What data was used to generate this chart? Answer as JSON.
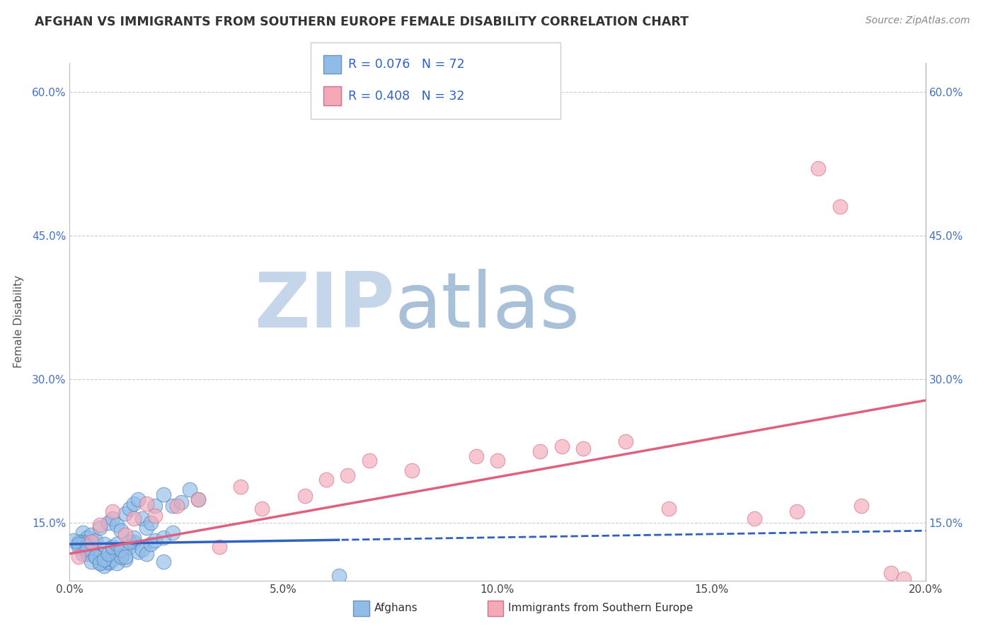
{
  "title": "AFGHAN VS IMMIGRANTS FROM SOUTHERN EUROPE FEMALE DISABILITY CORRELATION CHART",
  "source": "Source: ZipAtlas.com",
  "ylabel": "Female Disability",
  "legend_label1": "Afghans",
  "legend_label2": "Immigrants from Southern Europe",
  "R1": 0.076,
  "N1": 72,
  "R2": 0.408,
  "N2": 32,
  "color1": "#90bce8",
  "color2": "#f4a8b8",
  "trendline1_color": "#3060c0",
  "trendline2_color": "#e06080",
  "xlim": [
    0.0,
    0.2
  ],
  "ylim": [
    0.09,
    0.63
  ],
  "xticks": [
    0.0,
    0.05,
    0.1,
    0.15,
    0.2
  ],
  "yticks": [
    0.15,
    0.3,
    0.45,
    0.6
  ],
  "ytick_labels": [
    "15.0%",
    "30.0%",
    "45.0%",
    "60.0%"
  ],
  "xtick_labels": [
    "0.0%",
    "5.0%",
    "10.0%",
    "15.0%",
    "20.0%"
  ],
  "watermark_zip": "ZIP",
  "watermark_atlas": "atlas",
  "watermark_color_zip": "#c8d8ee",
  "watermark_color_atlas": "#a8c4e0",
  "blue_scatter_x": [
    0.003,
    0.004,
    0.005,
    0.006,
    0.007,
    0.008,
    0.009,
    0.01,
    0.011,
    0.012,
    0.013,
    0.014,
    0.015,
    0.016,
    0.017,
    0.018,
    0.019,
    0.02,
    0.022,
    0.024,
    0.026,
    0.028,
    0.03,
    0.002,
    0.003,
    0.004,
    0.005,
    0.006,
    0.007,
    0.008,
    0.009,
    0.01,
    0.011,
    0.012,
    0.013,
    0.014,
    0.015,
    0.016,
    0.017,
    0.018,
    0.019,
    0.02,
    0.022,
    0.024,
    0.002,
    0.003,
    0.004,
    0.005,
    0.006,
    0.007,
    0.008,
    0.009,
    0.01,
    0.011,
    0.012,
    0.063,
    0.001,
    0.002,
    0.003,
    0.004,
    0.005,
    0.006,
    0.007,
    0.008,
    0.009,
    0.01,
    0.011,
    0.012,
    0.013,
    0.014,
    0.015,
    0.022
  ],
  "blue_scatter_y": [
    0.14,
    0.135,
    0.138,
    0.132,
    0.145,
    0.128,
    0.15,
    0.155,
    0.148,
    0.142,
    0.16,
    0.165,
    0.17,
    0.175,
    0.155,
    0.145,
    0.15,
    0.168,
    0.18,
    0.168,
    0.172,
    0.185,
    0.175,
    0.125,
    0.13,
    0.118,
    0.122,
    0.115,
    0.11,
    0.112,
    0.108,
    0.12,
    0.118,
    0.115,
    0.112,
    0.125,
    0.13,
    0.12,
    0.122,
    0.118,
    0.128,
    0.132,
    0.135,
    0.14,
    0.13,
    0.128,
    0.125,
    0.122,
    0.115,
    0.108,
    0.105,
    0.11,
    0.112,
    0.108,
    0.115,
    0.095,
    0.132,
    0.128,
    0.118,
    0.122,
    0.11,
    0.115,
    0.108,
    0.112,
    0.118,
    0.125,
    0.128,
    0.122,
    0.115,
    0.13,
    0.135,
    0.11
  ],
  "pink_scatter_x": [
    0.002,
    0.005,
    0.007,
    0.01,
    0.013,
    0.015,
    0.018,
    0.02,
    0.025,
    0.03,
    0.035,
    0.04,
    0.045,
    0.055,
    0.06,
    0.065,
    0.07,
    0.08,
    0.095,
    0.1,
    0.11,
    0.115,
    0.12,
    0.13,
    0.14,
    0.16,
    0.17,
    0.175,
    0.18,
    0.185,
    0.192,
    0.195
  ],
  "pink_scatter_y": [
    0.115,
    0.13,
    0.148,
    0.162,
    0.138,
    0.155,
    0.17,
    0.158,
    0.168,
    0.175,
    0.125,
    0.188,
    0.165,
    0.178,
    0.195,
    0.2,
    0.215,
    0.205,
    0.22,
    0.215,
    0.225,
    0.23,
    0.228,
    0.235,
    0.165,
    0.155,
    0.162,
    0.52,
    0.48,
    0.168,
    0.098,
    0.092
  ],
  "blue_trend_x0": 0.0,
  "blue_trend_y0": 0.128,
  "blue_trend_x1": 0.2,
  "blue_trend_y1": 0.142,
  "pink_trend_x0": 0.0,
  "pink_trend_y0": 0.118,
  "pink_trend_x1": 0.2,
  "pink_trend_y1": 0.278
}
